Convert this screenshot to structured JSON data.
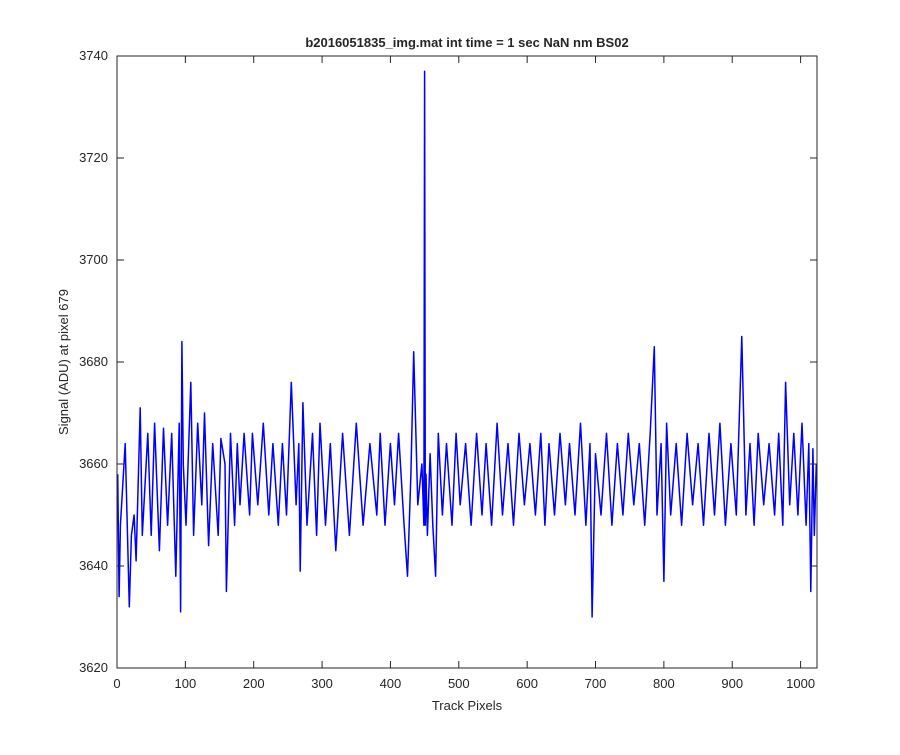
{
  "chart_data": {
    "type": "line",
    "title": "b2016051835_img.mat int time = 1 sec  NaN nm BS02",
    "xlabel": "Track Pixels",
    "ylabel": "Signal (ADU) at pixel 679",
    "xlim": [
      0,
      1024
    ],
    "ylim": [
      3620,
      3740
    ],
    "xticks": [
      0,
      100,
      200,
      300,
      400,
      500,
      600,
      700,
      800,
      900,
      1000
    ],
    "yticks": [
      3620,
      3640,
      3660,
      3680,
      3700,
      3720,
      3740
    ],
    "xtick_labels": [
      "0",
      "100",
      "200",
      "300",
      "400",
      "500",
      "600",
      "700",
      "800",
      "900",
      "1000"
    ],
    "ytick_labels": [
      "3620",
      "3640",
      "3660",
      "3680",
      "3700",
      "3720",
      "3740"
    ],
    "grid": false,
    "series": [
      {
        "color": "#0000ff",
        "x": [
          1,
          3,
          5,
          12,
          18,
          21,
          25,
          28,
          34,
          37,
          45,
          50,
          55,
          62,
          68,
          74,
          80,
          86,
          91,
          93,
          95,
          97,
          101,
          108,
          112,
          118,
          124,
          128,
          134,
          140,
          148,
          152,
          158,
          160,
          166,
          172,
          176,
          180,
          186,
          194,
          198,
          206,
          214,
          222,
          228,
          236,
          242,
          248,
          255,
          262,
          266,
          268,
          272,
          278,
          286,
          292,
          297,
          305,
          312,
          320,
          330,
          340,
          350,
          360,
          370,
          380,
          385,
          392,
          400,
          406,
          412,
          420,
          425,
          430,
          434,
          440,
          446,
          449,
          450,
          451,
          452,
          454,
          458,
          462,
          466,
          470,
          476,
          482,
          490,
          496,
          502,
          510,
          518,
          526,
          534,
          540,
          548,
          556,
          564,
          572,
          580,
          588,
          596,
          604,
          612,
          620,
          626,
          632,
          640,
          648,
          656,
          662,
          670,
          678,
          686,
          692,
          695,
          700,
          708,
          716,
          724,
          732,
          740,
          748,
          756,
          764,
          772,
          780,
          786,
          790,
          796,
          800,
          804,
          810,
          818,
          826,
          834,
          842,
          850,
          858,
          866,
          874,
          882,
          890,
          898,
          906,
          914,
          920,
          926,
          932,
          938,
          946,
          954,
          962,
          968,
          974,
          978,
          984,
          990,
          996,
          1002,
          1008,
          1012,
          1015,
          1018,
          1020,
          1023
        ],
        "y": [
          3658,
          3634,
          3648,
          3664,
          3632,
          3646,
          3650,
          3641,
          3671,
          3646,
          3666,
          3646,
          3668,
          3643,
          3667,
          3648,
          3666,
          3638,
          3668,
          3631,
          3684,
          3660,
          3648,
          3676,
          3646,
          3668,
          3652,
          3670,
          3644,
          3664,
          3646,
          3665,
          3660,
          3635,
          3666,
          3648,
          3664,
          3652,
          3666,
          3650,
          3666,
          3652,
          3668,
          3650,
          3664,
          3648,
          3664,
          3650,
          3676,
          3652,
          3664,
          3639,
          3672,
          3648,
          3666,
          3646,
          3668,
          3648,
          3664,
          3643,
          3666,
          3646,
          3668,
          3648,
          3664,
          3650,
          3666,
          3648,
          3664,
          3652,
          3666,
          3648,
          3638,
          3658,
          3682,
          3652,
          3660,
          3648,
          3737,
          3648,
          3658,
          3646,
          3662,
          3648,
          3638,
          3666,
          3650,
          3664,
          3648,
          3666,
          3652,
          3664,
          3648,
          3666,
          3650,
          3664,
          3648,
          3668,
          3650,
          3664,
          3648,
          3666,
          3652,
          3664,
          3650,
          3666,
          3648,
          3664,
          3650,
          3666,
          3652,
          3664,
          3650,
          3668,
          3648,
          3664,
          3630,
          3662,
          3650,
          3666,
          3648,
          3664,
          3650,
          3666,
          3652,
          3664,
          3648,
          3666,
          3683,
          3650,
          3664,
          3637,
          3668,
          3650,
          3664,
          3648,
          3666,
          3652,
          3664,
          3648,
          3666,
          3650,
          3668,
          3648,
          3664,
          3650,
          3685,
          3650,
          3664,
          3648,
          3666,
          3652,
          3664,
          3650,
          3666,
          3648,
          3676,
          3652,
          3666,
          3650,
          3668,
          3648,
          3664,
          3635,
          3663,
          3646,
          3660
        ]
      }
    ]
  }
}
